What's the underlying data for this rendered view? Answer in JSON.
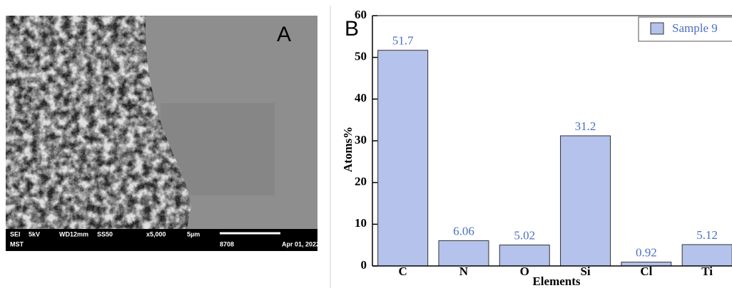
{
  "image_panel": {
    "label": "A",
    "info": [
      "SEI",
      "5kV",
      "WD12mm",
      "SS50",
      "x5,000",
      "5µm",
      "MST",
      "8708",
      "Apr 01, 2022"
    ]
  },
  "chart_data": {
    "type": "bar",
    "panel_label": "B",
    "x_label": "Elements",
    "y_label": "Atoms%",
    "categories": [
      "C",
      "N",
      "O",
      "Si",
      "Cl",
      "Ti"
    ],
    "series": [
      {
        "name": "Sample 9",
        "color": "#b4c2ec",
        "values": [
          51.7,
          6.06,
          5.02,
          31.2,
          0.92,
          5.12
        ]
      }
    ],
    "ylim": [
      0,
      60
    ],
    "yticks": [
      0,
      10,
      20,
      30,
      40,
      50,
      60
    ],
    "legend": "upper-right"
  }
}
